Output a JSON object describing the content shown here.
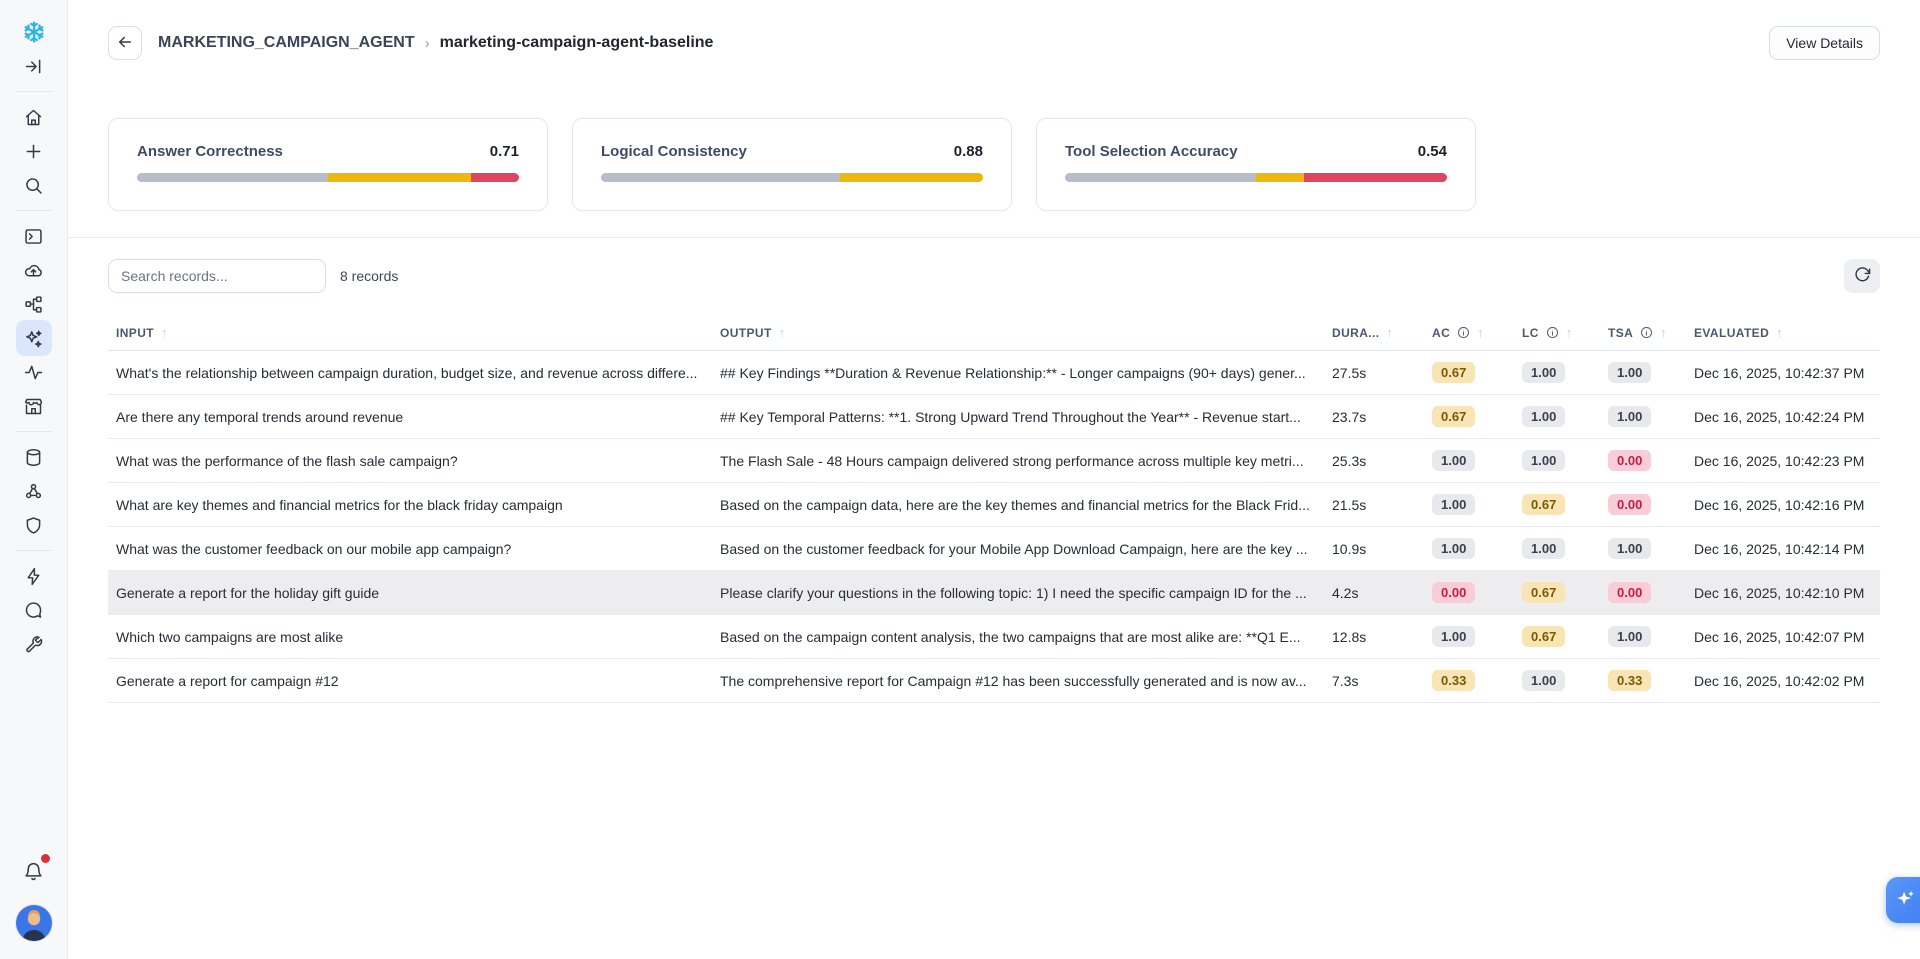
{
  "sidebar": {
    "items": [
      {
        "icon": "snowflake-logo",
        "type": "logo"
      },
      {
        "icon": "panel-toggle-icon"
      },
      {
        "type": "divider"
      },
      {
        "icon": "home-icon"
      },
      {
        "icon": "create-new-icon"
      },
      {
        "icon": "search-icon"
      },
      {
        "type": "divider"
      },
      {
        "icon": "worksheets-icon"
      },
      {
        "icon": "cloud-upload-icon"
      },
      {
        "icon": "pipelines-icon"
      },
      {
        "icon": "ai-ml-icon",
        "active": true
      },
      {
        "icon": "activity-icon"
      },
      {
        "icon": "marketplace-icon"
      },
      {
        "type": "divider"
      },
      {
        "icon": "database-icon"
      },
      {
        "icon": "collaboration-icon"
      },
      {
        "icon": "governance-shield-icon"
      },
      {
        "type": "divider"
      },
      {
        "icon": "automation-bolt-icon"
      },
      {
        "icon": "support-chat-icon"
      },
      {
        "icon": "tools-wrench-icon"
      }
    ],
    "bottom": {
      "bell": "notifications-bell-icon",
      "has_notification": true,
      "avatar": "user-avatar"
    }
  },
  "header": {
    "breadcrumb_parent": "MARKETING_CAMPAIGN_AGENT",
    "breadcrumb_separator": "›",
    "breadcrumb_current": "marketing-campaign-agent-baseline",
    "view_details_label": "View Details"
  },
  "metrics": {
    "colors": {
      "pass": "#b7bdc9",
      "partial": "#eeb70e",
      "fail": "#e0455f"
    },
    "cards": [
      {
        "title": "Answer Correctness",
        "value": "0.71",
        "segments": {
          "pass": 50,
          "partial": 37.5,
          "fail": 12.5
        }
      },
      {
        "title": "Logical Consistency",
        "value": "0.88",
        "segments": {
          "pass": 62.5,
          "partial": 37.5,
          "fail": 0
        }
      },
      {
        "title": "Tool Selection Accuracy",
        "value": "0.54",
        "segments": {
          "pass": 50,
          "partial": 12.5,
          "fail": 37.5
        }
      }
    ]
  },
  "toolbar": {
    "search_placeholder": "Search records...",
    "records_count": "8 records"
  },
  "table": {
    "columns": [
      {
        "label": "INPUT",
        "sortable": true
      },
      {
        "label": "OUTPUT",
        "sortable": true
      },
      {
        "label": "DURA...",
        "sortable": true
      },
      {
        "label": "AC",
        "info": true,
        "sortable": true
      },
      {
        "label": "LC",
        "info": true,
        "sortable": true
      },
      {
        "label": "TSA",
        "info": true,
        "sortable": true
      },
      {
        "label": "EVALUATED",
        "sortable": true
      }
    ],
    "rows": [
      {
        "input": "What's the relationship between campaign duration, budget size, and revenue across differe...",
        "output": "## Key Findings **Duration & Revenue Relationship:** - Longer campaigns (90+ days) gener...",
        "duration": "27.5s",
        "ac": "0.67",
        "lc": "1.00",
        "tsa": "1.00",
        "evaluated": "Dec 16, 2025, 10:42:37 PM",
        "highlighted": false
      },
      {
        "input": "Are there any temporal trends around revenue",
        "output": "## Key Temporal Patterns: **1. Strong Upward Trend Throughout the Year** - Revenue start...",
        "duration": "23.7s",
        "ac": "0.67",
        "lc": "1.00",
        "tsa": "1.00",
        "evaluated": "Dec 16, 2025, 10:42:24 PM",
        "highlighted": false
      },
      {
        "input": "What was the performance of the flash sale campaign?",
        "output": "The Flash Sale - 48 Hours campaign delivered strong performance across multiple key metri...",
        "duration": "25.3s",
        "ac": "1.00",
        "lc": "1.00",
        "tsa": "0.00",
        "evaluated": "Dec 16, 2025, 10:42:23 PM",
        "highlighted": false
      },
      {
        "input": "What are key themes and financial metrics for the black friday campaign",
        "output": "Based on the campaign data, here are the key themes and financial metrics for the Black Frid...",
        "duration": "21.5s",
        "ac": "1.00",
        "lc": "0.67",
        "tsa": "0.00",
        "evaluated": "Dec 16, 2025, 10:42:16 PM",
        "highlighted": false
      },
      {
        "input": "What was the customer feedback on our mobile app campaign?",
        "output": "Based on the customer feedback for your Mobile App Download Campaign, here are the key ...",
        "duration": "10.9s",
        "ac": "1.00",
        "lc": "1.00",
        "tsa": "1.00",
        "evaluated": "Dec 16, 2025, 10:42:14 PM",
        "highlighted": false
      },
      {
        "input": "Generate a report for the holiday gift guide",
        "output": "Please clarify your questions in the following topic: 1) I need the specific campaign ID for the ...",
        "duration": "4.2s",
        "ac": "0.00",
        "lc": "0.67",
        "tsa": "0.00",
        "evaluated": "Dec 16, 2025, 10:42:10 PM",
        "highlighted": true
      },
      {
        "input": "Which two campaigns are most alike",
        "output": "Based on the campaign content analysis, the two campaigns that are most alike are: **Q1 E...",
        "duration": "12.8s",
        "ac": "1.00",
        "lc": "0.67",
        "tsa": "1.00",
        "evaluated": "Dec 16, 2025, 10:42:07 PM",
        "highlighted": false
      },
      {
        "input": "Generate a report for campaign #12",
        "output": "The comprehensive report for Campaign #12 has been successfully generated and is now av...",
        "duration": "7.3s",
        "ac": "0.33",
        "lc": "1.00",
        "tsa": "0.33",
        "evaluated": "Dec 16, 2025, 10:42:02 PM",
        "highlighted": false
      }
    ]
  },
  "floating": {
    "assistant_icon": "sparkle-icon"
  }
}
